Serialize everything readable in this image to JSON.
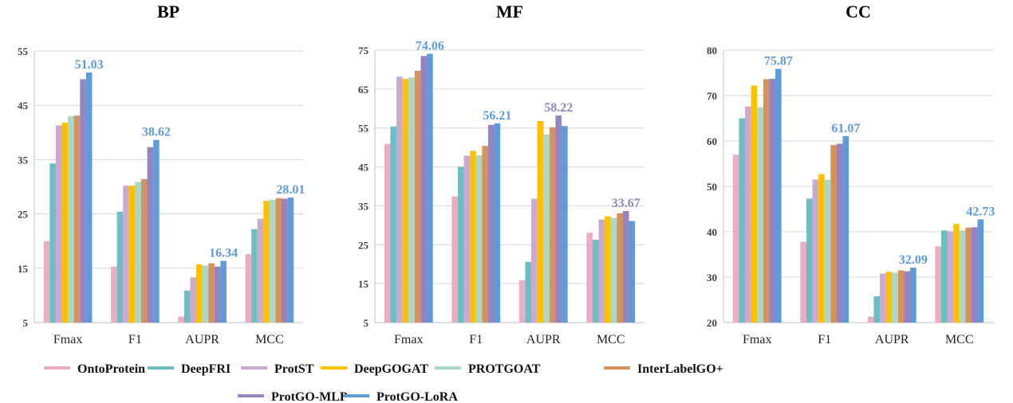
{
  "chart_data": [
    {
      "type": "bar",
      "title": "BP",
      "categories": [
        "Fmax",
        "F1",
        "AUPR",
        "MCC"
      ],
      "ylim": [
        5,
        55
      ],
      "yticks": [
        5,
        15,
        25,
        35,
        45,
        55
      ],
      "grid": true,
      "series": [
        {
          "name": "OntoProtein",
          "values": [
            20.0,
            15.3,
            6.1,
            17.6
          ]
        },
        {
          "name": "DeepFRI",
          "values": [
            34.3,
            25.4,
            10.9,
            22.2
          ]
        },
        {
          "name": "ProtST",
          "values": [
            41.3,
            30.2,
            13.3,
            24.1
          ]
        },
        {
          "name": "DeepGOGAT",
          "values": [
            41.8,
            30.2,
            15.7,
            27.4
          ]
        },
        {
          "name": "PROTGOAT",
          "values": [
            43.0,
            30.9,
            15.5,
            27.6
          ]
        },
        {
          "name": "InterLabelGO+",
          "values": [
            43.1,
            31.4,
            15.9,
            27.9
          ]
        },
        {
          "name": "ProtGO-MLP",
          "values": [
            49.8,
            37.3,
            15.3,
            27.8
          ]
        },
        {
          "name": "ProtGO-LoRA",
          "values": [
            51.03,
            38.62,
            16.34,
            28.01
          ]
        }
      ],
      "annotations": [
        {
          "category": "Fmax",
          "series": "ProtGO-LoRA",
          "text": "51.03"
        },
        {
          "category": "F1",
          "series": "ProtGO-LoRA",
          "text": "38.62"
        },
        {
          "category": "AUPR",
          "series": "ProtGO-LoRA",
          "text": "16.34"
        },
        {
          "category": "MCC",
          "series": "ProtGO-LoRA",
          "text": "28.01"
        }
      ]
    },
    {
      "type": "bar",
      "title": "MF",
      "categories": [
        "Fmax",
        "F1",
        "AUPR",
        "MCC"
      ],
      "ylim": [
        5,
        75
      ],
      "yticks": [
        5,
        15,
        25,
        35,
        45,
        55,
        65,
        75
      ],
      "grid": true,
      "series": [
        {
          "name": "OntoProtein",
          "values": [
            50.9,
            37.4,
            15.9,
            28.1
          ]
        },
        {
          "name": "DeepFRI",
          "values": [
            55.4,
            45.0,
            20.6,
            26.3
          ]
        },
        {
          "name": "ProtST",
          "values": [
            68.2,
            47.9,
            36.8,
            31.5
          ]
        },
        {
          "name": "DeepGOGAT",
          "values": [
            67.6,
            49.1,
            56.8,
            32.3
          ]
        },
        {
          "name": "PROTGOAT",
          "values": [
            68.0,
            48.0,
            53.3,
            31.9
          ]
        },
        {
          "name": "InterLabelGO+",
          "values": [
            69.7,
            50.4,
            55.2,
            33.1
          ]
        },
        {
          "name": "ProtGO-MLP",
          "values": [
            73.5,
            55.8,
            58.22,
            33.67
          ]
        },
        {
          "name": "ProtGO-LoRA",
          "values": [
            74.06,
            56.21,
            55.5,
            31.1
          ]
        }
      ],
      "annotations": [
        {
          "category": "Fmax",
          "series": "ProtGO-LoRA",
          "text": "74.06"
        },
        {
          "category": "F1",
          "series": "ProtGO-LoRA",
          "text": "56.21"
        },
        {
          "category": "AUPR",
          "series": "ProtGO-MLP",
          "text": "58.22"
        },
        {
          "category": "MCC",
          "series": "ProtGO-MLP",
          "text": "33.67"
        }
      ]
    },
    {
      "type": "bar",
      "title": "CC",
      "categories": [
        "Fmax",
        "F1",
        "AUPR",
        "MCC"
      ],
      "ylim": [
        20,
        80
      ],
      "yticks": [
        20,
        30,
        40,
        50,
        60,
        70,
        80
      ],
      "grid": true,
      "series": [
        {
          "name": "OntoProtein",
          "values": [
            57.0,
            37.8,
            21.3,
            36.8
          ]
        },
        {
          "name": "DeepFRI",
          "values": [
            65.0,
            47.3,
            25.8,
            40.3
          ]
        },
        {
          "name": "ProtST",
          "values": [
            67.6,
            51.5,
            30.8,
            40.1
          ]
        },
        {
          "name": "DeepGOGAT",
          "values": [
            72.2,
            52.7,
            31.2,
            41.7
          ]
        },
        {
          "name": "PROTGOAT",
          "values": [
            67.4,
            51.5,
            31.0,
            40.3
          ]
        },
        {
          "name": "InterLabelGO+",
          "values": [
            73.6,
            59.1,
            31.5,
            40.9
          ]
        },
        {
          "name": "ProtGO-MLP",
          "values": [
            73.7,
            59.4,
            31.3,
            41.0
          ]
        },
        {
          "name": "ProtGO-LoRA",
          "values": [
            75.87,
            61.07,
            32.09,
            42.73
          ]
        }
      ],
      "annotations": [
        {
          "category": "Fmax",
          "series": "ProtGO-LoRA",
          "text": "75.87"
        },
        {
          "category": "F1",
          "series": "ProtGO-LoRA",
          "text": "61.07"
        },
        {
          "category": "AUPR",
          "series": "ProtGO-LoRA",
          "text": "32.09"
        },
        {
          "category": "MCC",
          "series": "ProtGO-LoRA",
          "text": "42.73"
        }
      ]
    }
  ],
  "legend": {
    "placement": "bottom",
    "items": [
      {
        "name": "OntoProtein",
        "color": "#EBADC4"
      },
      {
        "name": "DeepFRI",
        "color": "#6BBFC2"
      },
      {
        "name": "ProtST",
        "color": "#CDA8D3"
      },
      {
        "name": "DeepGOGAT",
        "color": "#FFC000"
      },
      {
        "name": "PROTGOAT",
        "color": "#A9D8C8"
      },
      {
        "name": "InterLabelGO+",
        "color": "#D6925A"
      },
      {
        "name": "ProtGO-MLP",
        "color": "#9583C2"
      },
      {
        "name": "ProtGO-LoRA",
        "color": "#5D9BDA"
      }
    ]
  }
}
